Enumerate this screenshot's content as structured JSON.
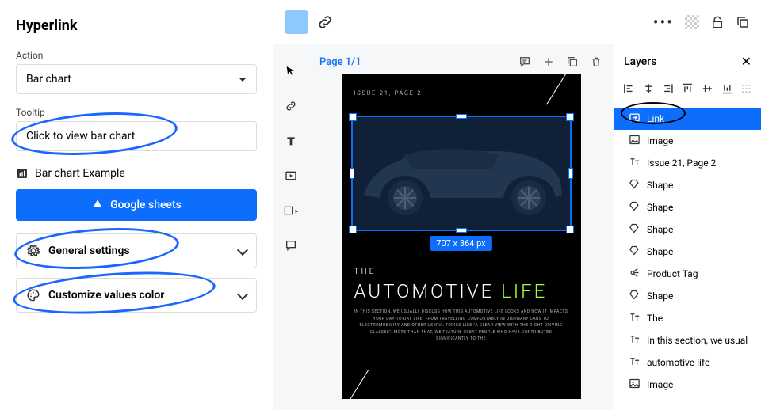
{
  "panel": {
    "title": "Hyperlink",
    "action_label": "Action",
    "action_value": "Bar chart",
    "tooltip_label": "Tooltip",
    "tooltip_value": "Click to view bar chart",
    "example_label": "Bar chart Example",
    "google_sheets_label": "Google sheets",
    "general_settings_label": "General settings",
    "customize_colors_label": "Customize values color"
  },
  "topbar": {
    "swatch_color": "#8fc7ff"
  },
  "canvas": {
    "page_indicator": "Page 1/1",
    "issue_line": "ISSUE 21, PAGE 2",
    "dim_label": "707 x 364 px",
    "the": "THE",
    "headline_a": "AUTOMOTIVE ",
    "headline_b": "LIFE",
    "body": "IN THIS SECTION, WE USUALLY DISCUSS HOW THIS AUTOMOTIVE LIFE LOOKS AND HOW IT IMPACTS YOUR DAY-TO-DAY LIFE. FROM TRAVELLING COMFORTABLY IN ORDINARY CARS TO ELECTROMOBILITY AND OTHER USEFUL TOPICS LIKE \"A CLEAR VIEW WITH THE RIGHT DRIVING GLASSES\". MORE THAN THAT, WE FEATURE GREAT PEOPLE WHO HAVE CONTRIBUTED SIGNIFICANTLY TO THE"
  },
  "layers": {
    "title": "Layers",
    "items": [
      {
        "type": "link",
        "label": "Link",
        "selected": true
      },
      {
        "type": "image",
        "label": "Image"
      },
      {
        "type": "text",
        "label": "Issue 21, Page 2"
      },
      {
        "type": "shape",
        "label": "Shape"
      },
      {
        "type": "shape",
        "label": "Shape"
      },
      {
        "type": "shape",
        "label": "Shape"
      },
      {
        "type": "shape",
        "label": "Shape"
      },
      {
        "type": "tag",
        "label": "Product Tag"
      },
      {
        "type": "shape",
        "label": "Shape"
      },
      {
        "type": "text",
        "label": "The"
      },
      {
        "type": "text",
        "label": "In this section, we usual"
      },
      {
        "type": "text",
        "label": "automotive life"
      },
      {
        "type": "image",
        "label": "Image"
      }
    ]
  },
  "colors": {
    "accent": "#0d6efd",
    "annot": "#1967ff",
    "lime": "#9fff3b"
  }
}
